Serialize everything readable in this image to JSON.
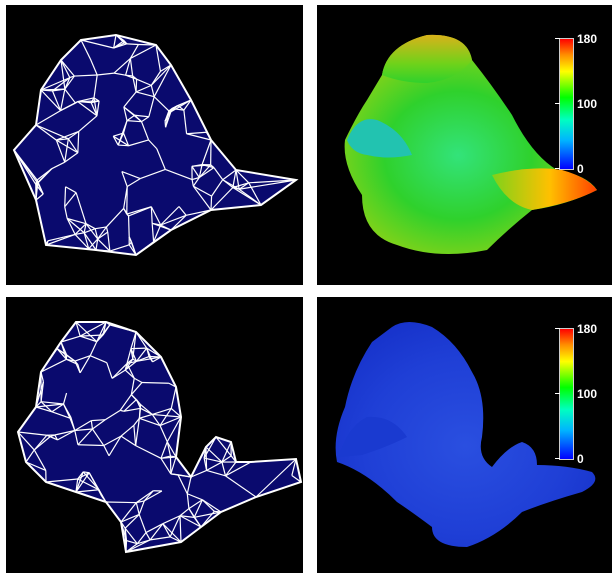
{
  "panels": {
    "top_left": {
      "content": "wireframe-mesh",
      "mesh_fill": "#0a0a6e",
      "edge_color": "#ffffff"
    },
    "top_right": {
      "content": "shaded-mesh",
      "colorbar": {
        "max": "180",
        "mid": "100",
        "min": "0"
      }
    },
    "bottom_left": {
      "content": "wireframe-mesh",
      "mesh_fill": "#0a0a6e",
      "edge_color": "#ffffff"
    },
    "bottom_right": {
      "content": "shaded-mesh",
      "colorbar": {
        "max": "180",
        "mid": "100",
        "min": "0"
      }
    }
  },
  "colors": {
    "background": "#000000",
    "mesh": "#0a0a6e",
    "edges": "#ffffff"
  }
}
